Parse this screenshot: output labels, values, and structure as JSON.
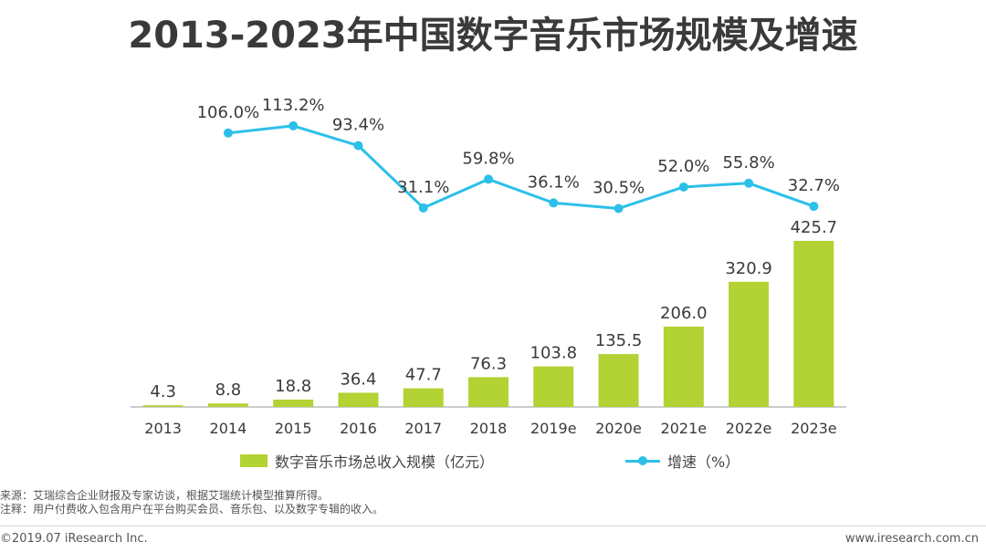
{
  "title": "2013-2023年中国数字音乐市场规模及增速",
  "chart_data": {
    "type": "bar",
    "title": "2013-2023年中国数字音乐市场规模及增速",
    "categories": [
      "2013",
      "2014",
      "2015",
      "2016",
      "2017",
      "2018",
      "2019e",
      "2020e",
      "2021e",
      "2022e",
      "2023e"
    ],
    "series": [
      {
        "name": "数字音乐市场总收入规模（亿元）",
        "type": "bar",
        "color": "#b3d233",
        "values": [
          4.3,
          8.8,
          18.8,
          36.4,
          47.7,
          76.3,
          103.8,
          135.5,
          206.0,
          320.9,
          425.7
        ],
        "labels": [
          "4.3",
          "8.8",
          "18.8",
          "36.4",
          "47.7",
          "76.3",
          "103.8",
          "135.5",
          "206.0",
          "320.9",
          "425.7"
        ]
      },
      {
        "name": "增速（%）",
        "type": "line",
        "color": "#2cc0e8",
        "values": [
          null,
          106.0,
          113.2,
          93.4,
          31.1,
          59.8,
          36.1,
          30.5,
          52.0,
          55.8,
          32.7
        ],
        "labels": [
          null,
          "106.0%",
          "113.2%",
          "93.4%",
          "31.1%",
          "59.8%",
          "36.1%",
          "30.5%",
          "52.0%",
          "55.8%",
          "32.7%"
        ]
      }
    ],
    "legend_position": "bottom",
    "grid": false
  },
  "legend": {
    "bar_label": "数字音乐市场总收入规模（亿元）",
    "line_label": "增速（%）"
  },
  "notes": {
    "source": "来源：艾瑞综合企业财报及专家访谈，根据艾瑞统计模型推算所得。",
    "note": "注释：用户付费收入包含用户在平台购买会员、音乐包、以及数字专辑的收入。"
  },
  "footer": {
    "left": "©2019.07 iResearch Inc.",
    "right": "www.iresearch.com.cn"
  }
}
